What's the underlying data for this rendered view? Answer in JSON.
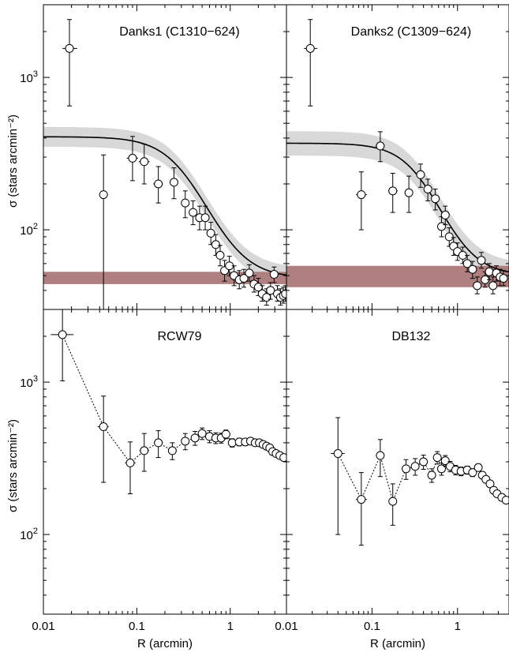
{
  "chart_data": [
    {
      "type": "scatter",
      "title": "Danks1 (C1310−624)",
      "xlabel": "",
      "ylabel": "σ (stars arcmin⁻²)",
      "xscale": "log",
      "yscale": "log",
      "xlim": [
        0.01,
        4
      ],
      "ylim": [
        30,
        3000
      ],
      "x_tick_labels": [],
      "y_tick_labels": [
        {
          "v": 100,
          "label": "10",
          "exp": "2"
        },
        {
          "v": 1000,
          "label": "10",
          "exp": "3"
        }
      ],
      "king_fit": {
        "sigma0": 360,
        "rc": 0.33,
        "bg": 48
      },
      "fit_band_scale": [
        0.86,
        1.16
      ],
      "background_band": [
        44,
        53
      ],
      "points": [
        {
          "x": 0.019,
          "y": 1550,
          "xlo": 0.016,
          "xhi": 0.023,
          "ylo": 650,
          "yhi": 2400
        },
        {
          "x": 0.044,
          "y": 170,
          "xlo": 0.04,
          "xhi": 0.049,
          "ylo": 30,
          "yhi": 310
        },
        {
          "x": 0.09,
          "y": 295,
          "xlo": 0.078,
          "xhi": 0.103,
          "ylo": 210,
          "yhi": 410
        },
        {
          "x": 0.12,
          "y": 280,
          "xlo": 0.105,
          "xhi": 0.137,
          "ylo": 200,
          "yhi": 365
        },
        {
          "x": 0.17,
          "y": 200,
          "xlo": 0.15,
          "xhi": 0.19,
          "ylo": 150,
          "yhi": 260
        },
        {
          "x": 0.25,
          "y": 205,
          "xlo": 0.225,
          "xhi": 0.275,
          "ylo": 160,
          "yhi": 255
        },
        {
          "x": 0.33,
          "y": 150,
          "xlo": 0.3,
          "xhi": 0.36,
          "ylo": 120,
          "yhi": 180
        },
        {
          "x": 0.4,
          "y": 130,
          "xlo": 0.37,
          "xhi": 0.43,
          "ylo": 108,
          "yhi": 155
        },
        {
          "x": 0.47,
          "y": 120,
          "xlo": 0.44,
          "xhi": 0.5,
          "ylo": 100,
          "yhi": 143
        },
        {
          "x": 0.54,
          "y": 120,
          "xlo": 0.51,
          "xhi": 0.57,
          "ylo": 100,
          "yhi": 143
        },
        {
          "x": 0.62,
          "y": 95,
          "xlo": 0.59,
          "xhi": 0.66,
          "ylo": 80,
          "yhi": 112
        },
        {
          "x": 0.7,
          "y": 80,
          "xlo": 0.67,
          "xhi": 0.74,
          "ylo": 68,
          "yhi": 93
        },
        {
          "x": 0.78,
          "y": 68,
          "xlo": 0.75,
          "xhi": 0.82,
          "ylo": 58,
          "yhi": 79
        },
        {
          "x": 0.87,
          "y": 54,
          "xlo": 0.83,
          "xhi": 0.91,
          "ylo": 46,
          "yhi": 63
        },
        {
          "x": 0.98,
          "y": 58,
          "xlo": 0.94,
          "xhi": 1.03,
          "ylo": 50,
          "yhi": 67
        },
        {
          "x": 1.1,
          "y": 50,
          "xlo": 1.05,
          "xhi": 1.15,
          "ylo": 43,
          "yhi": 58
        },
        {
          "x": 1.25,
          "y": 47,
          "xlo": 1.2,
          "xhi": 1.3,
          "ylo": 41,
          "yhi": 54
        },
        {
          "x": 1.4,
          "y": 48,
          "xlo": 1.35,
          "xhi": 1.46,
          "ylo": 42,
          "yhi": 55
        },
        {
          "x": 1.6,
          "y": 52,
          "xlo": 1.54,
          "xhi": 1.66,
          "ylo": 46,
          "yhi": 59
        },
        {
          "x": 1.8,
          "y": 44,
          "xlo": 1.74,
          "xhi": 1.87,
          "ylo": 39,
          "yhi": 50
        },
        {
          "x": 2.0,
          "y": 42,
          "xlo": 1.94,
          "xhi": 2.07,
          "ylo": 37,
          "yhi": 48
        },
        {
          "x": 2.2,
          "y": 38,
          "xlo": 2.14,
          "xhi": 2.27,
          "ylo": 34,
          "yhi": 43
        },
        {
          "x": 2.45,
          "y": 36,
          "xlo": 2.38,
          "xhi": 2.52,
          "ylo": 32,
          "yhi": 41
        },
        {
          "x": 2.7,
          "y": 40,
          "xlo": 2.63,
          "xhi": 2.77,
          "ylo": 35,
          "yhi": 45
        },
        {
          "x": 2.95,
          "y": 51,
          "xlo": 2.88,
          "xhi": 3.03,
          "ylo": 45,
          "yhi": 57
        },
        {
          "x": 3.2,
          "y": 38,
          "xlo": 3.12,
          "xhi": 3.28,
          "ylo": 34,
          "yhi": 43
        },
        {
          "x": 3.45,
          "y": 36,
          "xlo": 3.37,
          "xhi": 3.53,
          "ylo": 32,
          "yhi": 41
        },
        {
          "x": 3.7,
          "y": 37,
          "xlo": 3.62,
          "xhi": 3.78,
          "ylo": 33,
          "yhi": 42
        },
        {
          "x": 3.9,
          "y": 38,
          "xlo": 3.82,
          "xhi": 3.98,
          "ylo": 34,
          "yhi": 43
        }
      ]
    },
    {
      "type": "scatter",
      "title": "Danks2 (C1309−624)",
      "xlabel": "",
      "ylabel": "",
      "xscale": "log",
      "yscale": "log",
      "xlim": [
        0.01,
        4
      ],
      "ylim": [
        30,
        3000
      ],
      "x_tick_labels": [],
      "y_tick_labels": [],
      "king_fit": {
        "sigma0": 320,
        "rc": 0.38,
        "bg": 50
      },
      "fit_band_scale": [
        0.83,
        1.2
      ],
      "background_band": [
        42,
        58
      ],
      "points": [
        {
          "x": 0.019,
          "y": 1550,
          "xlo": 0.016,
          "xhi": 0.023,
          "ylo": 650,
          "yhi": 2400
        },
        {
          "x": 0.075,
          "y": 170,
          "xlo": 0.065,
          "xhi": 0.087,
          "ylo": 100,
          "yhi": 240
        },
        {
          "x": 0.125,
          "y": 355,
          "xlo": 0.11,
          "xhi": 0.14,
          "ylo": 280,
          "yhi": 440
        },
        {
          "x": 0.175,
          "y": 180,
          "xlo": 0.155,
          "xhi": 0.2,
          "ylo": 130,
          "yhi": 235
        },
        {
          "x": 0.27,
          "y": 175,
          "xlo": 0.24,
          "xhi": 0.3,
          "ylo": 130,
          "yhi": 225
        },
        {
          "x": 0.37,
          "y": 230,
          "xlo": 0.34,
          "xhi": 0.4,
          "ylo": 190,
          "yhi": 270
        },
        {
          "x": 0.45,
          "y": 185,
          "xlo": 0.42,
          "xhi": 0.48,
          "ylo": 155,
          "yhi": 215
        },
        {
          "x": 0.55,
          "y": 160,
          "xlo": 0.52,
          "xhi": 0.58,
          "ylo": 135,
          "yhi": 185
        },
        {
          "x": 0.65,
          "y": 105,
          "xlo": 0.62,
          "xhi": 0.68,
          "ylo": 90,
          "yhi": 122
        },
        {
          "x": 0.72,
          "y": 125,
          "xlo": 0.69,
          "xhi": 0.75,
          "ylo": 108,
          "yhi": 143
        },
        {
          "x": 0.8,
          "y": 90,
          "xlo": 0.77,
          "xhi": 0.84,
          "ylo": 78,
          "yhi": 103
        },
        {
          "x": 0.9,
          "y": 78,
          "xlo": 0.86,
          "xhi": 0.94,
          "ylo": 68,
          "yhi": 89
        },
        {
          "x": 1.0,
          "y": 72,
          "xlo": 0.96,
          "xhi": 1.05,
          "ylo": 63,
          "yhi": 82
        },
        {
          "x": 1.15,
          "y": 68,
          "xlo": 1.1,
          "xhi": 1.2,
          "ylo": 60,
          "yhi": 77
        },
        {
          "x": 1.3,
          "y": 60,
          "xlo": 1.25,
          "xhi": 1.35,
          "ylo": 53,
          "yhi": 68
        },
        {
          "x": 1.5,
          "y": 55,
          "xlo": 1.44,
          "xhi": 1.56,
          "ylo": 48,
          "yhi": 62
        },
        {
          "x": 1.7,
          "y": 43,
          "xlo": 1.64,
          "xhi": 1.77,
          "ylo": 38,
          "yhi": 49
        },
        {
          "x": 1.9,
          "y": 63,
          "xlo": 1.83,
          "xhi": 1.97,
          "ylo": 56,
          "yhi": 71
        },
        {
          "x": 2.1,
          "y": 47,
          "xlo": 2.03,
          "xhi": 2.17,
          "ylo": 42,
          "yhi": 53
        },
        {
          "x": 2.35,
          "y": 53,
          "xlo": 2.27,
          "xhi": 2.43,
          "ylo": 47,
          "yhi": 60
        },
        {
          "x": 2.6,
          "y": 43,
          "xlo": 2.52,
          "xhi": 2.68,
          "ylo": 38,
          "yhi": 49
        },
        {
          "x": 2.85,
          "y": 52,
          "xlo": 2.77,
          "xhi": 2.93,
          "ylo": 46,
          "yhi": 58
        },
        {
          "x": 3.15,
          "y": 49,
          "xlo": 3.06,
          "xhi": 3.24,
          "ylo": 43,
          "yhi": 55
        },
        {
          "x": 3.45,
          "y": 48,
          "xlo": 3.36,
          "xhi": 3.54,
          "ylo": 43,
          "yhi": 54
        }
      ]
    },
    {
      "type": "scatter",
      "title": "RCW79",
      "xlabel": "R (arcmin)",
      "ylabel": "σ (stars arcmin⁻²)",
      "xscale": "log",
      "yscale": "log",
      "xlim": [
        0.01,
        4
      ],
      "ylim": [
        30,
        3000
      ],
      "x_tick_labels": [
        {
          "v": 0.01,
          "label": "0.01"
        },
        {
          "v": 0.1,
          "label": "0.1"
        },
        {
          "v": 1,
          "label": "1"
        }
      ],
      "y_tick_labels": [
        {
          "v": 100,
          "label": "10",
          "exp": "2"
        },
        {
          "v": 1000,
          "label": "10",
          "exp": "3"
        }
      ],
      "connected": true,
      "points": [
        {
          "x": 0.016,
          "y": 2050,
          "xlo": 0.012,
          "xhi": 0.021,
          "ylo": 1020,
          "yhi": 3100
        },
        {
          "x": 0.044,
          "y": 510,
          "xlo": 0.038,
          "xhi": 0.05,
          "ylo": 220,
          "yhi": 810
        },
        {
          "x": 0.085,
          "y": 295,
          "xlo": 0.075,
          "xhi": 0.097,
          "ylo": 185,
          "yhi": 405
        },
        {
          "x": 0.12,
          "y": 355,
          "xlo": 0.107,
          "xhi": 0.135,
          "ylo": 260,
          "yhi": 460
        },
        {
          "x": 0.17,
          "y": 400,
          "xlo": 0.152,
          "xhi": 0.19,
          "ylo": 320,
          "yhi": 480
        },
        {
          "x": 0.24,
          "y": 355,
          "xlo": 0.22,
          "xhi": 0.26,
          "ylo": 310,
          "yhi": 400
        },
        {
          "x": 0.33,
          "y": 410,
          "xlo": 0.3,
          "xhi": 0.36,
          "ylo": 360,
          "yhi": 460
        },
        {
          "x": 0.42,
          "y": 430,
          "xlo": 0.39,
          "xhi": 0.45,
          "ylo": 385,
          "yhi": 475
        },
        {
          "x": 0.5,
          "y": 460,
          "xlo": 0.47,
          "xhi": 0.53,
          "ylo": 420,
          "yhi": 500
        },
        {
          "x": 0.6,
          "y": 440,
          "xlo": 0.57,
          "xhi": 0.63,
          "ylo": 400,
          "yhi": 480
        },
        {
          "x": 0.7,
          "y": 430,
          "xlo": 0.67,
          "xhi": 0.73,
          "ylo": 395,
          "yhi": 465
        },
        {
          "x": 0.8,
          "y": 430,
          "xlo": 0.77,
          "xhi": 0.83,
          "ylo": 398,
          "yhi": 462
        },
        {
          "x": 0.9,
          "y": 455,
          "xlo": 0.87,
          "xhi": 0.93,
          "ylo": 425,
          "yhi": 485
        },
        {
          "x": 1.05,
          "y": 400,
          "xlo": 1.01,
          "xhi": 1.09,
          "ylo": 375,
          "yhi": 425
        },
        {
          "x": 1.25,
          "y": 405,
          "xlo": 1.2,
          "xhi": 1.3,
          "ylo": 382,
          "yhi": 428
        },
        {
          "x": 1.45,
          "y": 405,
          "xlo": 1.4,
          "xhi": 1.5,
          "ylo": 384,
          "yhi": 426
        },
        {
          "x": 1.65,
          "y": 410,
          "xlo": 1.6,
          "xhi": 1.7,
          "ylo": 390,
          "yhi": 430
        },
        {
          "x": 1.85,
          "y": 400,
          "xlo": 1.8,
          "xhi": 1.9,
          "ylo": 381,
          "yhi": 419
        },
        {
          "x": 2.05,
          "y": 400,
          "xlo": 2.0,
          "xhi": 2.1,
          "ylo": 382,
          "yhi": 418
        },
        {
          "x": 2.25,
          "y": 390,
          "xlo": 2.2,
          "xhi": 2.3,
          "ylo": 373,
          "yhi": 407
        },
        {
          "x": 2.45,
          "y": 380,
          "xlo": 2.4,
          "xhi": 2.5,
          "ylo": 364,
          "yhi": 396
        },
        {
          "x": 2.65,
          "y": 370,
          "xlo": 2.6,
          "xhi": 2.7,
          "ylo": 355,
          "yhi": 385
        },
        {
          "x": 2.85,
          "y": 350,
          "xlo": 2.8,
          "xhi": 2.9,
          "ylo": 336,
          "yhi": 364
        },
        {
          "x": 3.1,
          "y": 340,
          "xlo": 3.04,
          "xhi": 3.16,
          "ylo": 327,
          "yhi": 353
        },
        {
          "x": 3.4,
          "y": 330,
          "xlo": 3.34,
          "xhi": 3.46,
          "ylo": 318,
          "yhi": 342
        },
        {
          "x": 3.75,
          "y": 320,
          "xlo": 3.69,
          "xhi": 3.81,
          "ylo": 309,
          "yhi": 331
        }
      ]
    },
    {
      "type": "scatter",
      "title": "DB132",
      "xlabel": "R (arcmin)",
      "ylabel": "",
      "xscale": "log",
      "yscale": "log",
      "xlim": [
        0.01,
        4
      ],
      "ylim": [
        30,
        3000
      ],
      "x_tick_labels": [
        {
          "v": 0.01,
          "label": "0.01"
        },
        {
          "v": 0.1,
          "label": "0.1"
        },
        {
          "v": 1,
          "label": "1"
        }
      ],
      "y_tick_labels": [],
      "connected": true,
      "points": [
        {
          "x": 0.04,
          "y": 340,
          "xlo": 0.033,
          "xhi": 0.048,
          "ylo": 100,
          "yhi": 585
        },
        {
          "x": 0.075,
          "y": 170,
          "xlo": 0.065,
          "xhi": 0.087,
          "ylo": 85,
          "yhi": 255
        },
        {
          "x": 0.125,
          "y": 330,
          "xlo": 0.113,
          "xhi": 0.138,
          "ylo": 240,
          "yhi": 420
        },
        {
          "x": 0.175,
          "y": 165,
          "xlo": 0.16,
          "xhi": 0.19,
          "ylo": 115,
          "yhi": 215
        },
        {
          "x": 0.25,
          "y": 270,
          "xlo": 0.23,
          "xhi": 0.27,
          "ylo": 230,
          "yhi": 310
        },
        {
          "x": 0.32,
          "y": 280,
          "xlo": 0.3,
          "xhi": 0.34,
          "ylo": 245,
          "yhi": 315
        },
        {
          "x": 0.4,
          "y": 300,
          "xlo": 0.38,
          "xhi": 0.42,
          "ylo": 268,
          "yhi": 332
        },
        {
          "x": 0.5,
          "y": 245,
          "xlo": 0.48,
          "xhi": 0.52,
          "ylo": 220,
          "yhi": 270
        },
        {
          "x": 0.58,
          "y": 320,
          "xlo": 0.56,
          "xhi": 0.6,
          "ylo": 290,
          "yhi": 350
        },
        {
          "x": 0.65,
          "y": 270,
          "xlo": 0.63,
          "xhi": 0.67,
          "ylo": 245,
          "yhi": 295
        },
        {
          "x": 0.72,
          "y": 305,
          "xlo": 0.7,
          "xhi": 0.74,
          "ylo": 280,
          "yhi": 330
        },
        {
          "x": 0.82,
          "y": 280,
          "xlo": 0.8,
          "xhi": 0.84,
          "ylo": 258,
          "yhi": 302
        },
        {
          "x": 0.95,
          "y": 265,
          "xlo": 0.93,
          "xhi": 0.97,
          "ylo": 246,
          "yhi": 284
        },
        {
          "x": 1.1,
          "y": 260,
          "xlo": 1.07,
          "xhi": 1.13,
          "ylo": 243,
          "yhi": 277
        },
        {
          "x": 1.3,
          "y": 265,
          "xlo": 1.27,
          "xhi": 1.33,
          "ylo": 249,
          "yhi": 281
        },
        {
          "x": 1.5,
          "y": 255,
          "xlo": 1.47,
          "xhi": 1.53,
          "ylo": 240,
          "yhi": 270
        },
        {
          "x": 1.75,
          "y": 275,
          "xlo": 1.72,
          "xhi": 1.78,
          "ylo": 260,
          "yhi": 290
        },
        {
          "x": 1.95,
          "y": 245,
          "xlo": 1.92,
          "xhi": 1.98,
          "ylo": 232,
          "yhi": 258
        },
        {
          "x": 2.15,
          "y": 230,
          "xlo": 2.12,
          "xhi": 2.18,
          "ylo": 218,
          "yhi": 242
        },
        {
          "x": 2.4,
          "y": 215,
          "xlo": 2.37,
          "xhi": 2.43,
          "ylo": 204,
          "yhi": 226
        },
        {
          "x": 2.65,
          "y": 195,
          "xlo": 2.62,
          "xhi": 2.68,
          "ylo": 185,
          "yhi": 205
        },
        {
          "x": 2.9,
          "y": 185,
          "xlo": 2.87,
          "xhi": 2.93,
          "ylo": 176,
          "yhi": 194
        },
        {
          "x": 3.3,
          "y": 175,
          "xlo": 3.25,
          "xhi": 3.35,
          "ylo": 167,
          "yhi": 183
        },
        {
          "x": 3.7,
          "y": 168,
          "xlo": 3.65,
          "xhi": 3.75,
          "ylo": 160,
          "yhi": 176
        }
      ]
    }
  ],
  "colors": {
    "fit_band": "#d8d8d8",
    "background_band": "#b07f7f",
    "marker_fill": "#ffffff",
    "ink": "#000000"
  }
}
